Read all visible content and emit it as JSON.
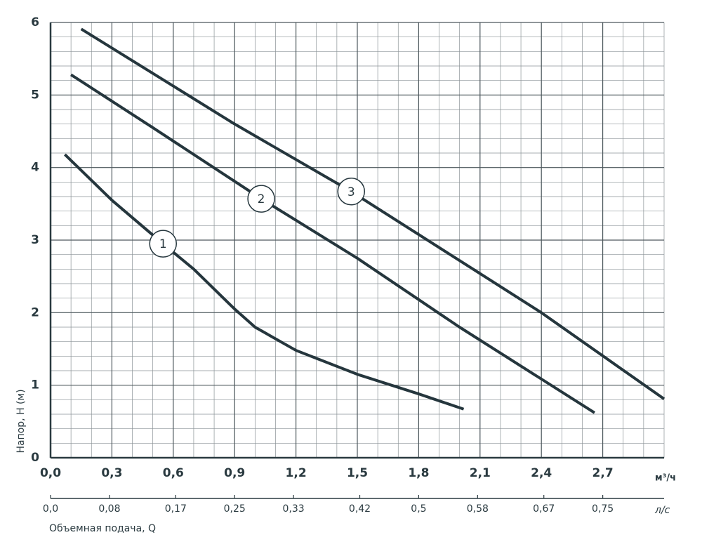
{
  "chart_data": {
    "type": "line",
    "y_label": "Напор, H (м)",
    "x_label": "Объемная подача, Q",
    "x_unit": "м³/ч",
    "x2_unit": "л/с",
    "xlim": [
      0,
      3.0
    ],
    "ylim": [
      0,
      6
    ],
    "x2lim": [
      0,
      0.8333
    ],
    "xticks": [
      {
        "value": 0,
        "label": "0,0"
      },
      {
        "value": 0.3,
        "label": "0,3"
      },
      {
        "value": 0.6,
        "label": "0,6"
      },
      {
        "value": 0.9,
        "label": "0,9"
      },
      {
        "value": 1.2,
        "label": "1,2"
      },
      {
        "value": 1.5,
        "label": "1,5"
      },
      {
        "value": 1.8,
        "label": "1,8"
      },
      {
        "value": 2.1,
        "label": "2,1"
      },
      {
        "value": 2.4,
        "label": "2,4"
      },
      {
        "value": 2.7,
        "label": "2,7"
      }
    ],
    "yticks": [
      0,
      1,
      2,
      3,
      4,
      5,
      6
    ],
    "x2ticks": [
      {
        "value": 0,
        "label": "0,0"
      },
      {
        "value": 0.08,
        "label": "0,08"
      },
      {
        "value": 0.17,
        "label": "0,17"
      },
      {
        "value": 0.25,
        "label": "0,25"
      },
      {
        "value": 0.33,
        "label": "0,33"
      },
      {
        "value": 0.42,
        "label": "0,42"
      },
      {
        "value": 0.5,
        "label": "0,5"
      },
      {
        "value": 0.58,
        "label": "0,58"
      },
      {
        "value": 0.67,
        "label": "0,67"
      },
      {
        "value": 0.75,
        "label": "0,75"
      }
    ],
    "grid": true,
    "minor_grid": {
      "x": 0.1,
      "y": 0.2
    },
    "series": [
      {
        "name": "1",
        "color": "#25363d",
        "x": [
          0.07,
          0.3,
          0.55,
          0.7,
          0.9,
          1.0,
          1.2,
          1.5,
          1.8,
          2.02
        ],
        "values": [
          4.18,
          3.55,
          2.95,
          2.6,
          2.05,
          1.8,
          1.48,
          1.15,
          0.88,
          0.67
        ]
      },
      {
        "name": "2",
        "color": "#25363d",
        "x": [
          0.1,
          0.5,
          1.03,
          1.5,
          2.0,
          2.66
        ],
        "values": [
          5.28,
          4.55,
          3.57,
          2.75,
          1.8,
          0.62
        ]
      },
      {
        "name": "3",
        "color": "#25363d",
        "x": [
          0.15,
          0.9,
          1.47,
          2.4,
          3.0
        ],
        "values": [
          5.91,
          4.6,
          3.67,
          2.0,
          0.81
        ]
      }
    ]
  }
}
